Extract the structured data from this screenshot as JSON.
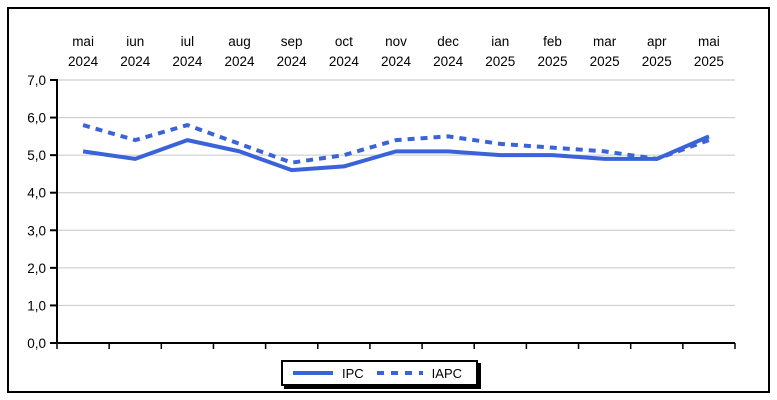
{
  "figure": {
    "background": "#ffffff",
    "frame_color": "#000000"
  },
  "chart_data": {
    "type": "line",
    "title": "",
    "xlabel": "",
    "ylabel": "",
    "categories": [
      {
        "month": "mai",
        "year": "2024"
      },
      {
        "month": "iun",
        "year": "2024"
      },
      {
        "month": "iul",
        "year": "2024"
      },
      {
        "month": "aug",
        "year": "2024"
      },
      {
        "month": "sep",
        "year": "2024"
      },
      {
        "month": "oct",
        "year": "2024"
      },
      {
        "month": "nov",
        "year": "2024"
      },
      {
        "month": "dec",
        "year": "2024"
      },
      {
        "month": "ian",
        "year": "2025"
      },
      {
        "month": "feb",
        "year": "2025"
      },
      {
        "month": "mar",
        "year": "2025"
      },
      {
        "month": "apr",
        "year": "2025"
      },
      {
        "month": "mai",
        "year": "2025"
      }
    ],
    "series": [
      {
        "name": "IPC",
        "line_style": "solid",
        "color": "#3b63d9",
        "values": [
          5.1,
          4.9,
          5.4,
          5.1,
          4.6,
          4.7,
          5.1,
          5.1,
          5.0,
          5.0,
          4.9,
          4.9,
          5.5
        ]
      },
      {
        "name": "IAPC",
        "line_style": "dashed",
        "color": "#3b63d9",
        "values": [
          5.8,
          5.4,
          5.8,
          5.3,
          4.8,
          5.0,
          5.4,
          5.5,
          5.3,
          5.2,
          5.1,
          4.9,
          5.4
        ]
      }
    ],
    "ylim": [
      0,
      7
    ],
    "ytick_step": 1,
    "ytick_labels": [
      "7,0",
      "6,0",
      "5,0",
      "4,0",
      "3,0",
      "2,0",
      "1,0",
      "0,0"
    ],
    "grid": true,
    "grid_color": "#c6c6c6",
    "axis_color": "#000000",
    "text_color": "#000000",
    "legend_position": "bottom-center"
  }
}
